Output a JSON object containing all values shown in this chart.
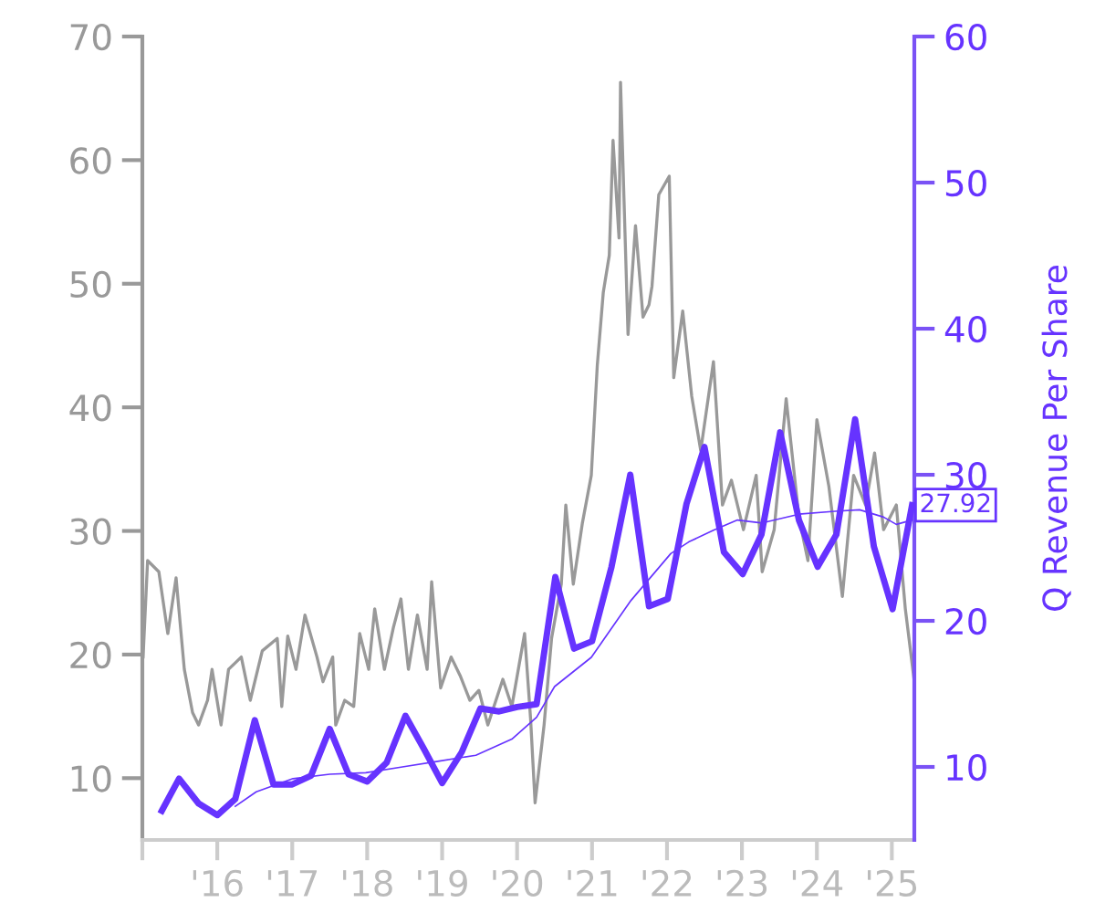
{
  "chart_data": {
    "type": "line",
    "ylabel": null,
    "y2label": "Q Revenue Per Share",
    "xlim": [
      2015,
      2025.3
    ],
    "xticks": [
      {
        "value": 2015,
        "label": null
      },
      {
        "value": 2016,
        "label": "'16"
      },
      {
        "value": 2017,
        "label": "'17"
      },
      {
        "value": 2018,
        "label": "'18"
      },
      {
        "value": 2019,
        "label": "'19"
      },
      {
        "value": 2020,
        "label": "'20"
      },
      {
        "value": 2021,
        "label": "'21"
      },
      {
        "value": 2022,
        "label": "'22"
      },
      {
        "value": 2023,
        "label": "'23"
      },
      {
        "value": 2024,
        "label": "'24"
      },
      {
        "value": 2025,
        "label": "'25"
      }
    ],
    "ylim": [
      5,
      70
    ],
    "yticks": [
      10,
      20,
      30,
      40,
      50,
      60,
      70
    ],
    "y2lim": [
      5,
      60
    ],
    "y2ticks": [
      10,
      20,
      30,
      40,
      50,
      60
    ],
    "grid": false,
    "legend": false,
    "marker": "none",
    "line_style": "solid",
    "series": [
      {
        "color": "#999999",
        "x": [
          2015.01,
          2015.07,
          2015.22,
          2015.34,
          2015.45,
          2015.56,
          2015.67,
          2015.75,
          2015.87,
          2015.93,
          2016.05,
          2016.15,
          2016.32,
          2016.44,
          2016.6,
          2016.8,
          2016.86,
          2016.94,
          2017.05,
          2017.17,
          2017.33,
          2017.41,
          2017.54,
          2017.58,
          2017.7,
          2017.82,
          2017.9,
          2018.02,
          2018.1,
          2018.23,
          2018.35,
          2018.45,
          2018.55,
          2018.67,
          2018.8,
          2018.86,
          2018.98,
          2019.12,
          2019.24,
          2019.37,
          2019.49,
          2019.61,
          2019.81,
          2019.93,
          2020.1,
          2020.18,
          2020.24,
          2020.36,
          2020.46,
          2020.59,
          2020.65,
          2020.75,
          2020.87,
          2020.99,
          2021.07,
          2021.15,
          2021.23,
          2021.28,
          2021.36,
          2021.38,
          2021.48,
          2021.58,
          2021.68,
          2021.76,
          2021.8,
          2021.89,
          2022.03,
          2022.09,
          2022.21,
          2022.33,
          2022.45,
          2022.62,
          2022.74,
          2022.86,
          2023.02,
          2023.19,
          2023.27,
          2023.43,
          2023.59,
          2023.76,
          2023.88,
          2024.0,
          2024.16,
          2024.34,
          2024.49,
          2024.65,
          2024.77,
          2024.89,
          2025.06,
          2025.18,
          2025.3
        ],
        "values": [
          19.8,
          27.6,
          26.7,
          21.7,
          26.2,
          18.8,
          15.3,
          14.3,
          16.3,
          18.8,
          14.3,
          18.8,
          19.8,
          16.3,
          20.3,
          21.3,
          15.8,
          21.5,
          18.8,
          23.2,
          19.8,
          17.8,
          19.8,
          14.3,
          16.3,
          15.8,
          21.7,
          18.8,
          23.7,
          18.8,
          22.2,
          24.5,
          18.8,
          23.2,
          18.8,
          25.9,
          17.3,
          19.8,
          18.3,
          16.3,
          17.1,
          14.3,
          18.0,
          15.8,
          21.7,
          14.8,
          8.0,
          14.3,
          21.3,
          25.7,
          32.1,
          25.7,
          30.6,
          34.5,
          43.4,
          49.3,
          52.3,
          61.6,
          53.7,
          66.3,
          45.9,
          54.7,
          47.3,
          48.3,
          49.8,
          57.2,
          58.7,
          42.4,
          47.8,
          40.9,
          36.5,
          43.7,
          32.1,
          34.1,
          30.1,
          34.5,
          26.7,
          30.1,
          40.7,
          31.1,
          27.6,
          39.0,
          33.6,
          24.7,
          34.5,
          32.1,
          36.3,
          30.1,
          32.1,
          23.7,
          17.8
        ]
      },
      {
        "color": "#6633ff",
        "axis": "y2",
        "x": [
          2015.26,
          2015.49,
          2015.75,
          2016.0,
          2016.24,
          2016.5,
          2016.75,
          2017.0,
          2017.25,
          2017.5,
          2017.75,
          2018.0,
          2018.26,
          2018.51,
          2018.76,
          2019.0,
          2019.26,
          2019.51,
          2019.76,
          2020.0,
          2020.26,
          2020.51,
          2020.76,
          2021.0,
          2021.26,
          2021.51,
          2021.76,
          2022.01,
          2022.26,
          2022.5,
          2022.76,
          2023.01,
          2023.26,
          2023.51,
          2023.76,
          2024.01,
          2024.26,
          2024.51,
          2024.76,
          2025.01,
          2025.27
        ],
        "values": [
          7.0,
          9.2,
          7.5,
          6.7,
          7.8,
          13.2,
          8.8,
          8.8,
          9.4,
          12.6,
          9.5,
          9.0,
          10.3,
          13.5,
          11.2,
          8.9,
          11.0,
          14.0,
          13.8,
          14.1,
          14.3,
          23.0,
          18.1,
          18.6,
          23.7,
          30.0,
          21.0,
          21.5,
          28.0,
          31.9,
          24.7,
          23.2,
          25.9,
          32.9,
          26.9,
          23.7,
          25.9,
          33.8,
          25.1,
          20.8,
          27.92
        ],
        "value_labels": [
          null,
          null,
          null,
          null,
          null,
          null,
          null,
          null,
          null,
          null,
          null,
          null,
          null,
          null,
          null,
          null,
          null,
          null,
          null,
          null,
          null,
          null,
          null,
          null,
          null,
          null,
          null,
          null,
          null,
          null,
          null,
          null,
          null,
          null,
          null,
          null,
          null,
          null,
          null,
          null,
          "27.92"
        ]
      },
      {
        "color": "#6633ff",
        "axis": "y2",
        "x": [
          2016.24,
          2016.52,
          2017.01,
          2017.5,
          2017.98,
          2018.47,
          2018.96,
          2019.45,
          2019.93,
          2020.26,
          2020.5,
          2020.99,
          2021.52,
          2022.05,
          2022.29,
          2022.62,
          2022.94,
          2023.27,
          2023.76,
          2024.24,
          2024.57,
          2024.89,
          2025.06,
          2025.27
        ],
        "values": [
          7.3,
          8.3,
          9.2,
          9.5,
          9.6,
          10.0,
          10.4,
          10.8,
          11.9,
          13.4,
          15.5,
          17.5,
          21.4,
          24.6,
          25.4,
          26.2,
          26.9,
          26.7,
          27.3,
          27.5,
          27.6,
          27.1,
          26.6,
          26.9
        ]
      }
    ]
  }
}
